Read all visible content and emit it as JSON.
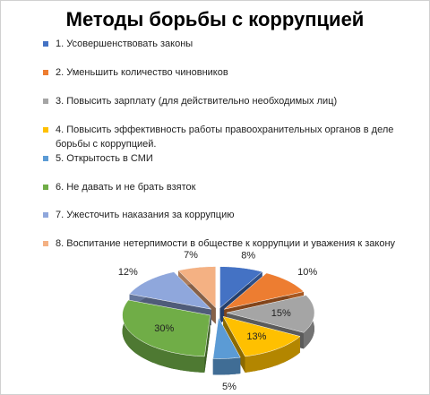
{
  "chart_data": {
    "type": "pie",
    "title": "Методы борьбы с коррупцией",
    "categories": [
      "1. Усовершенствовать  законы",
      "2.  Уменьшить  количество чиновников",
      "3.  Повысить зарплату (для действительно  необходимых лиц)",
      "4.  Повысить эффективность  работы правоохранительных органов в деле  борьбы с коррупцией.",
      "5.  Открытость в СМИ",
      "6.  Не давать и не брать взяток",
      "7.  Ужесточить  наказания за коррупцию",
      "8.  Воспитание нетерпимости  в обществе  к коррупции и уважения к закону"
    ],
    "values": [
      8,
      10,
      15,
      13,
      5,
      30,
      12,
      7
    ],
    "value_labels": [
      "8%",
      "10%",
      "15%",
      "13%",
      "5%",
      "30%",
      "12%",
      "7%"
    ],
    "colors": [
      "#4472c4",
      "#ed7d31",
      "#a5a5a5",
      "#ffc000",
      "#5b9bd5",
      "#70ad47",
      "#8fa7dc",
      "#f4b183"
    ]
  }
}
